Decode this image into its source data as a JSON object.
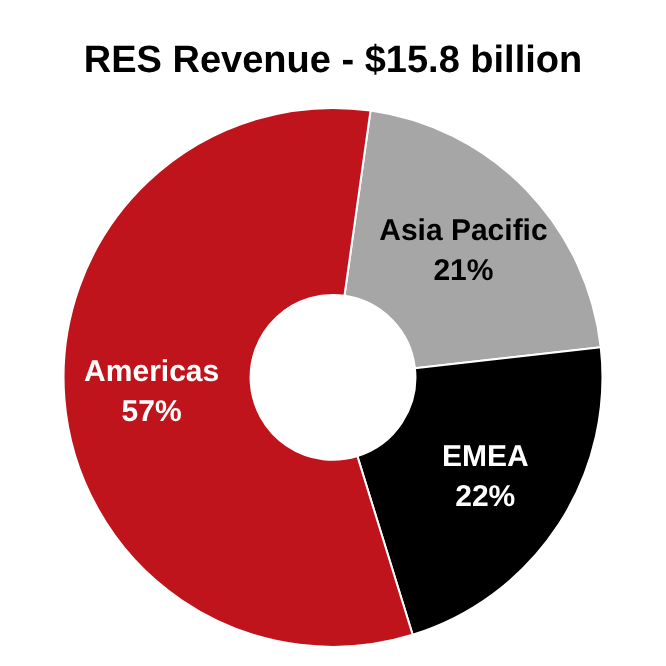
{
  "chart_data": {
    "type": "donut",
    "title": "RES Revenue - $15.8 billion",
    "categories": [
      "Asia Pacific",
      "EMEA",
      "Americas"
    ],
    "values": [
      21,
      22,
      57
    ],
    "colors": [
      "#a6a6a6",
      "#000000",
      "#c0141c"
    ],
    "value_labels": [
      "21%",
      "22%",
      "57%"
    ]
  }
}
